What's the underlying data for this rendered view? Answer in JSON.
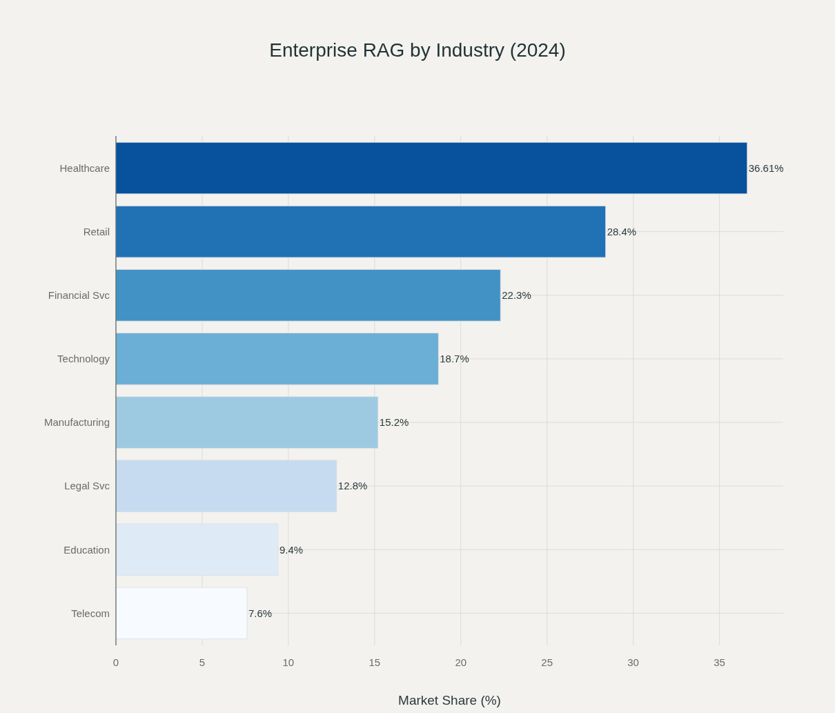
{
  "chart_data": {
    "type": "bar",
    "orientation": "horizontal",
    "title": "Enterprise RAG by Industry (2024)",
    "xlabel": "Market Share (%)",
    "categories": [
      "Healthcare",
      "Retail",
      "Financial Svc",
      "Technology",
      "Manufacturing",
      "Legal Svc",
      "Education",
      "Telecom"
    ],
    "values": [
      36.61,
      28.4,
      22.3,
      18.7,
      15.2,
      12.8,
      9.4,
      7.6
    ],
    "value_labels": [
      "36.61%",
      "28.4%",
      "22.3%",
      "18.7%",
      "15.2%",
      "12.8%",
      "9.4%",
      "7.6%"
    ],
    "colors": [
      "#08519c",
      "#2171b5",
      "#4292c6",
      "#6baed6",
      "#9ecae1",
      "#c6dbef",
      "#deebf7",
      "#f7fbff"
    ],
    "xlim": [
      0,
      38.7
    ],
    "xticks": [
      0,
      5,
      10,
      15,
      20,
      25,
      30,
      35
    ],
    "grid": true
  }
}
